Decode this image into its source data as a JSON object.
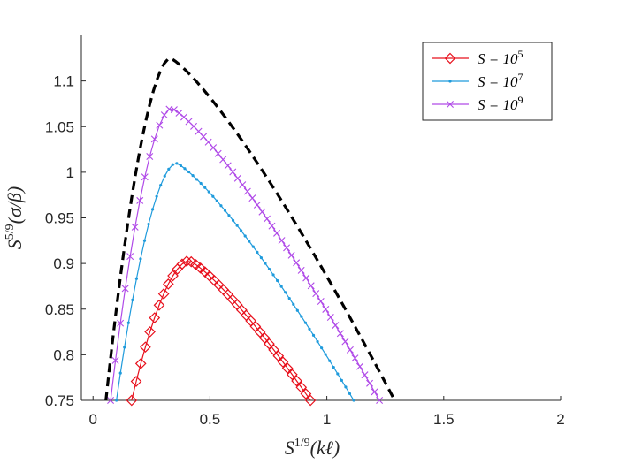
{
  "chart_data": {
    "type": "line",
    "title": "",
    "xlabel": "S^{1/9}(kℓ)",
    "ylabel": "S^{5/9}(σ/β)",
    "xlabel_parts": {
      "base": "S",
      "sup": "1/9",
      "rest": "(kℓ)"
    },
    "ylabel_parts": {
      "base": "S",
      "sup": "5/9",
      "rest": "(σ/β)"
    },
    "xlim": [
      -0.05,
      2
    ],
    "ylim": [
      0.75,
      1.15
    ],
    "xticks": [
      0,
      0.5,
      1,
      1.5,
      2
    ],
    "xtick_labels": [
      "0",
      "0.5",
      "1",
      "1.5",
      "2"
    ],
    "yticks": [
      0.75,
      0.8,
      0.85,
      0.9,
      0.95,
      1,
      1.05,
      1.1
    ],
    "ytick_labels": [
      "0.75",
      "0.8",
      "0.85",
      "0.9",
      "0.95",
      "1",
      "1.05",
      "1.1"
    ],
    "grid": false,
    "legend_position": "top-right",
    "series": [
      {
        "name": "S = 10^5",
        "legend_base": "S = 10",
        "legend_sup": "5",
        "color": "#e8101c",
        "marker": "diamond",
        "x0": 0.165,
        "x_peak": 0.41,
        "x1": 0.93,
        "y_peak": 0.903,
        "y_end": 0.75,
        "n": 40
      },
      {
        "name": "S = 10^7",
        "legend_base": "S = 10",
        "legend_sup": "7",
        "color": "#1f9bdc",
        "marker": "dot",
        "x0": 0.1,
        "x_peak": 0.355,
        "x1": 1.115,
        "y_peak": 1.01,
        "y_end": 0.75,
        "n": 60
      },
      {
        "name": "S = 10^9",
        "legend_base": "S = 10",
        "legend_sup": "9",
        "color": "#b04ae8",
        "marker": "x",
        "x0": 0.075,
        "x_peak": 0.335,
        "x1": 1.225,
        "y_peak": 1.07,
        "y_end": 0.75,
        "n": 56
      },
      {
        "name": "asymptote",
        "color": "#000000",
        "style": "dashed",
        "in_legend": false,
        "x0": 0.055,
        "x_peak": 0.33,
        "x1": 1.29,
        "y_peak": 1.125,
        "y_end": 0.75,
        "n": 80
      }
    ]
  }
}
